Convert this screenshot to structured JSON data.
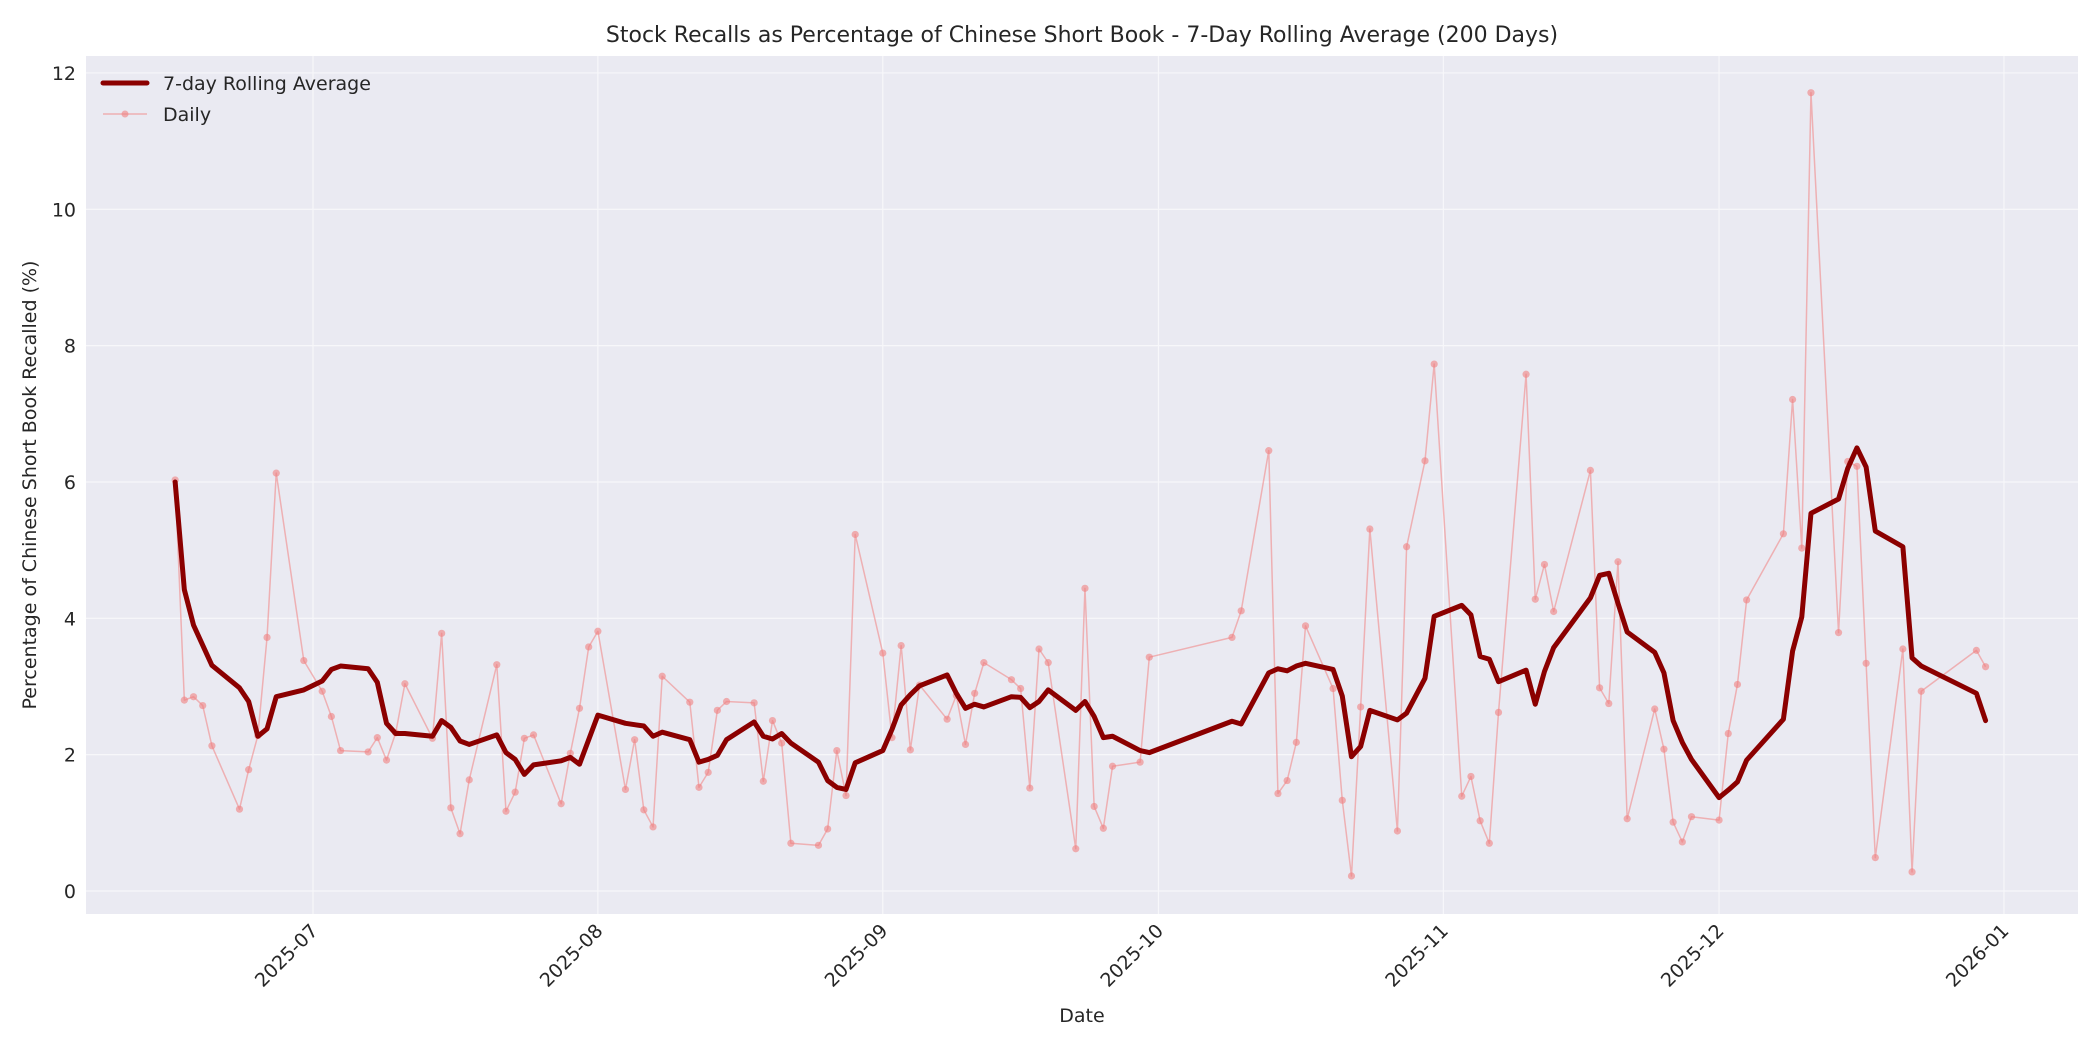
{
  "chart_data": {
    "type": "line",
    "title": "Stock Recalls as Percentage of Chinese Short Book - 7-Day Rolling Average (200 Days)",
    "xlabel": "Date",
    "ylabel": "Percentage of Chinese Short Book Recalled (%)",
    "ylim": [
      -0.45,
      12.3
    ],
    "yticks": [
      0,
      2,
      4,
      6,
      8,
      10,
      12
    ],
    "xticks": [
      "2025-07",
      "2025-08",
      "2025-09",
      "2025-10",
      "2025-11",
      "2025-12",
      "2026-01"
    ],
    "grid": true,
    "legend_position": "upper left",
    "legend": [
      "7-day Rolling Average",
      "Daily"
    ],
    "colors": {
      "rolling": "#8b0000",
      "daily": "#f08080",
      "plot_bg": "#eaeaf2",
      "grid": "#f5f5f8"
    },
    "series": [
      {
        "name": "Daily",
        "style": "thin line with circle markers, semi-transparent",
        "points": [
          [
            "2025-06-16",
            6.03
          ],
          [
            "2025-06-17",
            2.8
          ],
          [
            "2025-06-18",
            2.85
          ],
          [
            "2025-06-19",
            2.72
          ],
          [
            "2025-06-20",
            2.13
          ],
          [
            "2025-06-23",
            1.2
          ],
          [
            "2025-06-24",
            1.78
          ],
          [
            "2025-06-25",
            2.28
          ],
          [
            "2025-06-26",
            3.72
          ],
          [
            "2025-06-27",
            6.13
          ],
          [
            "2025-06-30",
            3.38
          ],
          [
            "2025-07-02",
            2.93
          ],
          [
            "2025-07-03",
            2.56
          ],
          [
            "2025-07-04",
            2.06
          ],
          [
            "2025-07-07",
            2.04
          ],
          [
            "2025-07-08",
            2.25
          ],
          [
            "2025-07-09",
            1.92
          ],
          [
            "2025-07-10",
            2.32
          ],
          [
            "2025-07-11",
            3.04
          ],
          [
            "2025-07-14",
            2.24
          ],
          [
            "2025-07-15",
            3.78
          ],
          [
            "2025-07-16",
            1.22
          ],
          [
            "2025-07-17",
            0.84
          ],
          [
            "2025-07-18",
            1.63
          ],
          [
            "2025-07-21",
            3.32
          ],
          [
            "2025-07-22",
            1.17
          ],
          [
            "2025-07-23",
            1.45
          ],
          [
            "2025-07-24",
            2.24
          ],
          [
            "2025-07-25",
            2.29
          ],
          [
            "2025-07-28",
            1.28
          ],
          [
            "2025-07-29",
            2.02
          ],
          [
            "2025-07-30",
            2.68
          ],
          [
            "2025-07-31",
            3.58
          ],
          [
            "2025-08-01",
            3.81
          ],
          [
            "2025-08-04",
            1.49
          ],
          [
            "2025-08-05",
            2.22
          ],
          [
            "2025-08-06",
            1.19
          ],
          [
            "2025-08-07",
            0.94
          ],
          [
            "2025-08-08",
            3.15
          ],
          [
            "2025-08-11",
            2.77
          ],
          [
            "2025-08-12",
            1.52
          ],
          [
            "2025-08-13",
            1.74
          ],
          [
            "2025-08-14",
            2.65
          ],
          [
            "2025-08-15",
            2.78
          ],
          [
            "2025-08-18",
            2.76
          ],
          [
            "2025-08-19",
            1.61
          ],
          [
            "2025-08-20",
            2.5
          ],
          [
            "2025-08-21",
            2.17
          ],
          [
            "2025-08-22",
            0.7
          ],
          [
            "2025-08-25",
            0.67
          ],
          [
            "2025-08-26",
            0.91
          ],
          [
            "2025-08-27",
            2.06
          ],
          [
            "2025-08-28",
            1.4
          ],
          [
            "2025-08-29",
            5.23
          ],
          [
            "2025-09-01",
            3.49
          ],
          [
            "2025-09-02",
            2.25
          ],
          [
            "2025-09-03",
            3.6
          ],
          [
            "2025-09-04",
            2.07
          ],
          [
            "2025-09-05",
            3.02
          ],
          [
            "2025-09-08",
            2.52
          ],
          [
            "2025-09-09",
            2.87
          ],
          [
            "2025-09-10",
            2.15
          ],
          [
            "2025-09-11",
            2.9
          ],
          [
            "2025-09-12",
            3.35
          ],
          [
            "2025-09-15",
            3.1
          ],
          [
            "2025-09-16",
            2.97
          ],
          [
            "2025-09-17",
            1.51
          ],
          [
            "2025-09-18",
            3.55
          ],
          [
            "2025-09-19",
            3.35
          ],
          [
            "2025-09-22",
            0.62
          ],
          [
            "2025-09-23",
            4.44
          ],
          [
            "2025-09-24",
            1.24
          ],
          [
            "2025-09-25",
            0.92
          ],
          [
            "2025-09-26",
            1.83
          ],
          [
            "2025-09-29",
            1.89
          ],
          [
            "2025-09-30",
            3.43
          ],
          [
            "2025-10-09",
            3.72
          ],
          [
            "2025-10-10",
            4.11
          ],
          [
            "2025-10-13",
            6.46
          ],
          [
            "2025-10-14",
            1.43
          ],
          [
            "2025-10-15",
            1.62
          ],
          [
            "2025-10-16",
            2.18
          ],
          [
            "2025-10-17",
            3.89
          ],
          [
            "2025-10-20",
            2.97
          ],
          [
            "2025-10-21",
            1.33
          ],
          [
            "2025-10-22",
            0.22
          ],
          [
            "2025-10-23",
            2.7
          ],
          [
            "2025-10-24",
            5.31
          ],
          [
            "2025-10-27",
            0.88
          ],
          [
            "2025-10-28",
            5.05
          ],
          [
            "2025-10-30",
            6.31
          ],
          [
            "2025-10-31",
            7.73
          ],
          [
            "2025-11-03",
            1.39
          ],
          [
            "2025-11-04",
            1.68
          ],
          [
            "2025-11-05",
            1.03
          ],
          [
            "2025-11-06",
            0.7
          ],
          [
            "2025-11-07",
            2.62
          ],
          [
            "2025-11-10",
            7.58
          ],
          [
            "2025-11-11",
            4.28
          ],
          [
            "2025-11-12",
            4.79
          ],
          [
            "2025-11-13",
            4.1
          ],
          [
            "2025-11-17",
            6.17
          ],
          [
            "2025-11-18",
            2.98
          ],
          [
            "2025-11-19",
            2.75
          ],
          [
            "2025-11-20",
            4.83
          ],
          [
            "2025-11-21",
            1.06
          ],
          [
            "2025-11-24",
            2.67
          ],
          [
            "2025-11-25",
            2.08
          ],
          [
            "2025-11-26",
            1.01
          ],
          [
            "2025-11-27",
            0.72
          ],
          [
            "2025-11-28",
            1.09
          ],
          [
            "2025-12-01",
            1.04
          ],
          [
            "2025-12-02",
            2.31
          ],
          [
            "2025-12-03",
            3.03
          ],
          [
            "2025-12-04",
            4.27
          ],
          [
            "2025-12-08",
            5.24
          ],
          [
            "2025-12-09",
            7.21
          ],
          [
            "2025-12-10",
            5.03
          ],
          [
            "2025-12-11",
            11.71
          ],
          [
            "2025-12-14",
            3.79
          ],
          [
            "2025-12-15",
            6.3
          ],
          [
            "2025-12-16",
            6.23
          ],
          [
            "2025-12-17",
            3.34
          ],
          [
            "2025-12-18",
            0.49
          ],
          [
            "2025-12-21",
            3.55
          ],
          [
            "2025-12-22",
            0.28
          ],
          [
            "2025-12-23",
            2.93
          ],
          [
            "2025-12-29",
            3.53
          ],
          [
            "2025-12-30",
            3.29
          ]
        ]
      },
      {
        "name": "7-day Rolling Average",
        "style": "thick dark red line",
        "points": [
          [
            "2025-06-16",
            6.0
          ],
          [
            "2025-06-17",
            4.42
          ],
          [
            "2025-06-18",
            3.9
          ],
          [
            "2025-06-20",
            3.31
          ],
          [
            "2025-06-23",
            2.98
          ],
          [
            "2025-06-24",
            2.78
          ],
          [
            "2025-06-25",
            2.27
          ],
          [
            "2025-06-26",
            2.38
          ],
          [
            "2025-06-27",
            2.85
          ],
          [
            "2025-06-30",
            2.95
          ],
          [
            "2025-07-02",
            3.08
          ],
          [
            "2025-07-03",
            3.25
          ],
          [
            "2025-07-04",
            3.3
          ],
          [
            "2025-07-07",
            3.26
          ],
          [
            "2025-07-08",
            3.06
          ],
          [
            "2025-07-09",
            2.46
          ],
          [
            "2025-07-10",
            2.31
          ],
          [
            "2025-07-11",
            2.31
          ],
          [
            "2025-07-14",
            2.27
          ],
          [
            "2025-07-15",
            2.5
          ],
          [
            "2025-07-16",
            2.4
          ],
          [
            "2025-07-17",
            2.2
          ],
          [
            "2025-07-18",
            2.15
          ],
          [
            "2025-07-21",
            2.29
          ],
          [
            "2025-07-22",
            2.03
          ],
          [
            "2025-07-23",
            1.93
          ],
          [
            "2025-07-24",
            1.71
          ],
          [
            "2025-07-25",
            1.85
          ],
          [
            "2025-07-28",
            1.91
          ],
          [
            "2025-07-29",
            1.96
          ],
          [
            "2025-07-30",
            1.86
          ],
          [
            "2025-08-01",
            2.58
          ],
          [
            "2025-08-04",
            2.46
          ],
          [
            "2025-08-06",
            2.42
          ],
          [
            "2025-08-07",
            2.27
          ],
          [
            "2025-08-08",
            2.33
          ],
          [
            "2025-08-11",
            2.22
          ],
          [
            "2025-08-12",
            1.89
          ],
          [
            "2025-08-13",
            1.93
          ],
          [
            "2025-08-14",
            1.99
          ],
          [
            "2025-08-15",
            2.22
          ],
          [
            "2025-08-18",
            2.48
          ],
          [
            "2025-08-19",
            2.27
          ],
          [
            "2025-08-20",
            2.23
          ],
          [
            "2025-08-21",
            2.31
          ],
          [
            "2025-08-22",
            2.17
          ],
          [
            "2025-08-25",
            1.89
          ],
          [
            "2025-08-26",
            1.62
          ],
          [
            "2025-08-27",
            1.52
          ],
          [
            "2025-08-28",
            1.49
          ],
          [
            "2025-08-29",
            1.88
          ],
          [
            "2025-09-01",
            2.06
          ],
          [
            "2025-09-02",
            2.37
          ],
          [
            "2025-09-03",
            2.73
          ],
          [
            "2025-09-04",
            2.88
          ],
          [
            "2025-09-05",
            3.01
          ],
          [
            "2025-09-08",
            3.17
          ],
          [
            "2025-09-09",
            2.9
          ],
          [
            "2025-09-10",
            2.68
          ],
          [
            "2025-09-11",
            2.74
          ],
          [
            "2025-09-12",
            2.7
          ],
          [
            "2025-09-15",
            2.85
          ],
          [
            "2025-09-16",
            2.84
          ],
          [
            "2025-09-17",
            2.69
          ],
          [
            "2025-09-18",
            2.78
          ],
          [
            "2025-09-19",
            2.95
          ],
          [
            "2025-09-22",
            2.65
          ],
          [
            "2025-09-23",
            2.78
          ],
          [
            "2025-09-24",
            2.56
          ],
          [
            "2025-09-25",
            2.25
          ],
          [
            "2025-09-26",
            2.27
          ],
          [
            "2025-09-29",
            2.06
          ],
          [
            "2025-09-30",
            2.03
          ],
          [
            "2025-10-09",
            2.49
          ],
          [
            "2025-10-10",
            2.45
          ],
          [
            "2025-10-13",
            3.2
          ],
          [
            "2025-10-14",
            3.26
          ],
          [
            "2025-10-15",
            3.23
          ],
          [
            "2025-10-16",
            3.3
          ],
          [
            "2025-10-17",
            3.34
          ],
          [
            "2025-10-20",
            3.25
          ],
          [
            "2025-10-21",
            2.86
          ],
          [
            "2025-10-22",
            1.97
          ],
          [
            "2025-10-23",
            2.12
          ],
          [
            "2025-10-24",
            2.65
          ],
          [
            "2025-10-27",
            2.51
          ],
          [
            "2025-10-28",
            2.61
          ],
          [
            "2025-10-30",
            3.12
          ],
          [
            "2025-10-31",
            4.03
          ],
          [
            "2025-11-03",
            4.19
          ],
          [
            "2025-11-04",
            4.05
          ],
          [
            "2025-11-05",
            3.44
          ],
          [
            "2025-11-06",
            3.4
          ],
          [
            "2025-11-07",
            3.07
          ],
          [
            "2025-11-10",
            3.24
          ],
          [
            "2025-11-11",
            2.74
          ],
          [
            "2025-11-12",
            3.22
          ],
          [
            "2025-11-13",
            3.57
          ],
          [
            "2025-11-17",
            4.3
          ],
          [
            "2025-11-18",
            4.63
          ],
          [
            "2025-11-19",
            4.66
          ],
          [
            "2025-11-20",
            4.22
          ],
          [
            "2025-11-21",
            3.8
          ],
          [
            "2025-11-24",
            3.5
          ],
          [
            "2025-11-25",
            3.2
          ],
          [
            "2025-11-26",
            2.5
          ],
          [
            "2025-11-27",
            2.18
          ],
          [
            "2025-11-28",
            1.93
          ],
          [
            "2025-12-01",
            1.37
          ],
          [
            "2025-12-02",
            1.48
          ],
          [
            "2025-12-03",
            1.6
          ],
          [
            "2025-12-04",
            1.92
          ],
          [
            "2025-12-08",
            2.52
          ],
          [
            "2025-12-09",
            3.52
          ],
          [
            "2025-12-10",
            4.02
          ],
          [
            "2025-12-11",
            5.54
          ],
          [
            "2025-12-14",
            5.75
          ],
          [
            "2025-12-15",
            6.2
          ],
          [
            "2025-12-16",
            6.5
          ],
          [
            "2025-12-17",
            6.22
          ],
          [
            "2025-12-18",
            5.28
          ],
          [
            "2025-12-21",
            5.05
          ],
          [
            "2025-12-22",
            3.42
          ],
          [
            "2025-12-23",
            3.3
          ],
          [
            "2025-12-29",
            2.9
          ],
          [
            "2025-12-30",
            2.5
          ]
        ]
      }
    ]
  }
}
